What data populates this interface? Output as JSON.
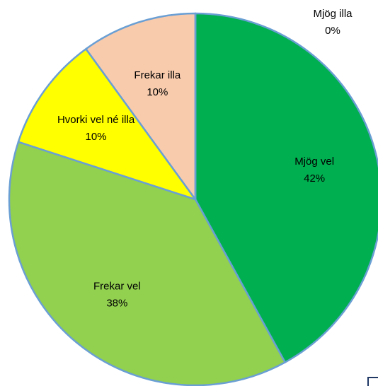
{
  "chart_data": {
    "type": "pie",
    "categories": [
      "Mjög vel",
      "Frekar vel",
      "Hvorki vel né illa",
      "Frekar illa",
      "Mjög illa"
    ],
    "values": [
      42,
      38,
      10,
      10,
      0
    ],
    "value_labels": [
      "42%",
      "38%",
      "10%",
      "10%",
      "0%"
    ],
    "colors": [
      "#00b050",
      "#92d050",
      "#ffff00",
      "#f8cbad",
      "#5b9bd5"
    ]
  }
}
